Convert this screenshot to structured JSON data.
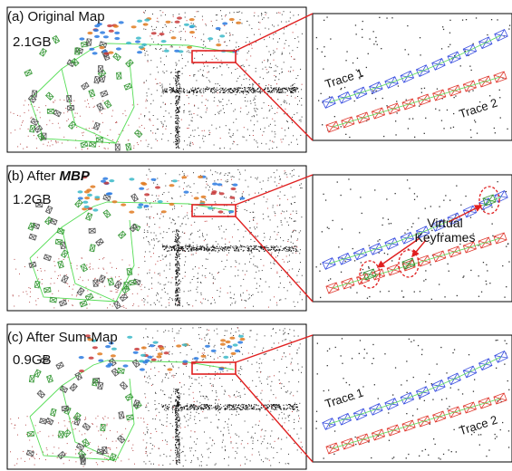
{
  "panels": [
    {
      "id": "a",
      "label_prefix": "(a) Original Map",
      "label_emph": "",
      "size": "2.1GB",
      "traces": [
        "Trace 1",
        "Trace 2"
      ]
    },
    {
      "id": "b",
      "label_prefix": "(b) After ",
      "label_emph": "MBP",
      "size": "1.2GB",
      "virtual_kf": [
        "Virtual",
        "Keyframes"
      ]
    },
    {
      "id": "c",
      "label_prefix": "(c) After Sum-Map",
      "label_emph": "",
      "size": "0.9GB",
      "traces": [
        "Trace 1",
        "Trace 2"
      ]
    }
  ],
  "colors": {
    "zoom_box": "#e02020",
    "trace1": "#3a4fe0",
    "trace2": "#e03a30",
    "path": "#55dd55",
    "virtual_kf": "#2e8b2e",
    "points": "#222222"
  }
}
